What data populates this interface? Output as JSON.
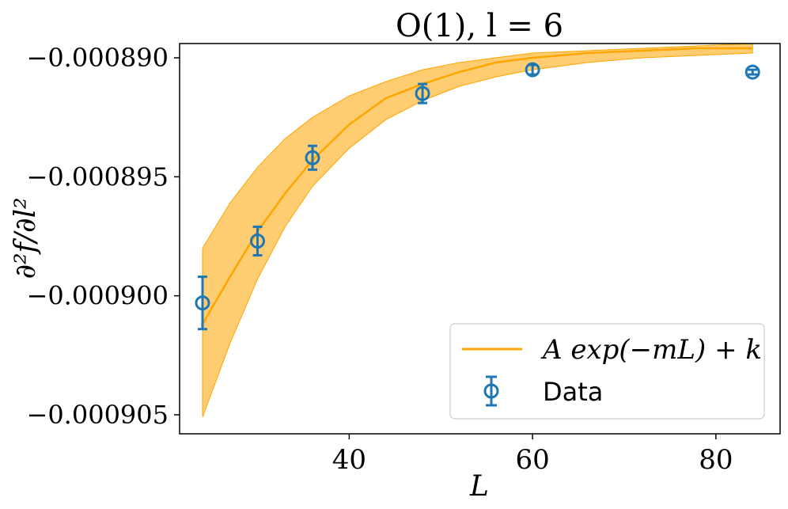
{
  "chart_data": {
    "type": "scatter",
    "title": "O(1), l = 6",
    "xlabel": "L",
    "ylabel": "∂²f/∂l²",
    "xlim": [
      21.5,
      87
    ],
    "ylim": [
      -0.0009058,
      -0.0008894
    ],
    "xticks": [
      40,
      60,
      80
    ],
    "xtick_labels": [
      "40",
      "60",
      "80"
    ],
    "yticks": [
      -0.00089,
      -0.000895,
      -0.0009,
      -0.000905
    ],
    "ytick_labels": [
      "−0.000890",
      "−0.000895",
      "−0.000900",
      "−0.000905"
    ],
    "grid": false,
    "legend_position": "bottom-right",
    "series": [
      {
        "name": "A exp(−mL) + k",
        "kind": "fit-line-with-band",
        "color": "#ffa500",
        "band_color": "#ffc04d",
        "x": [
          24,
          27,
          30,
          33,
          36,
          40,
          44,
          48,
          52,
          56,
          60,
          66,
          72,
          78,
          84
        ],
        "y": [
          -0.0009012,
          -0.0008992,
          -0.0008973,
          -0.0008957,
          -0.0008943,
          -0.0008928,
          -0.0008917,
          -0.0008911,
          -0.0008906,
          -0.0008902,
          -0.00089,
          -0.0008898,
          -0.0008897,
          -0.0008896,
          -0.0008896
        ],
        "lower": [
          -0.0009051,
          -0.000902,
          -0.0008993,
          -0.0008971,
          -0.0008954,
          -0.0008938,
          -0.0008926,
          -0.0008918,
          -0.0008912,
          -0.0008908,
          -0.0008905,
          -0.0008902,
          -0.00089,
          -0.0008899,
          -0.0008898
        ],
        "upper": [
          -0.000898,
          -0.0008961,
          -0.0008946,
          -0.0008934,
          -0.0008925,
          -0.0008916,
          -0.000891,
          -0.0008905,
          -0.0008902,
          -0.00089,
          -0.0008898,
          -0.0008897,
          -0.0008896,
          -0.0008895,
          -0.0008894
        ]
      },
      {
        "name": "Data",
        "kind": "errorbar",
        "color": "#1f77b4",
        "x": [
          24,
          30,
          36,
          48,
          60,
          84
        ],
        "y": [
          -0.0009003,
          -0.0008977,
          -0.0008942,
          -0.0008915,
          -0.0008905,
          -0.0008906
        ],
        "err": [
          1.1e-06,
          6e-07,
          5e-07,
          4e-07,
          2e-07,
          1e-07
        ]
      }
    ]
  },
  "colors": {
    "background": "#ffffff",
    "axes": "#000000"
  }
}
